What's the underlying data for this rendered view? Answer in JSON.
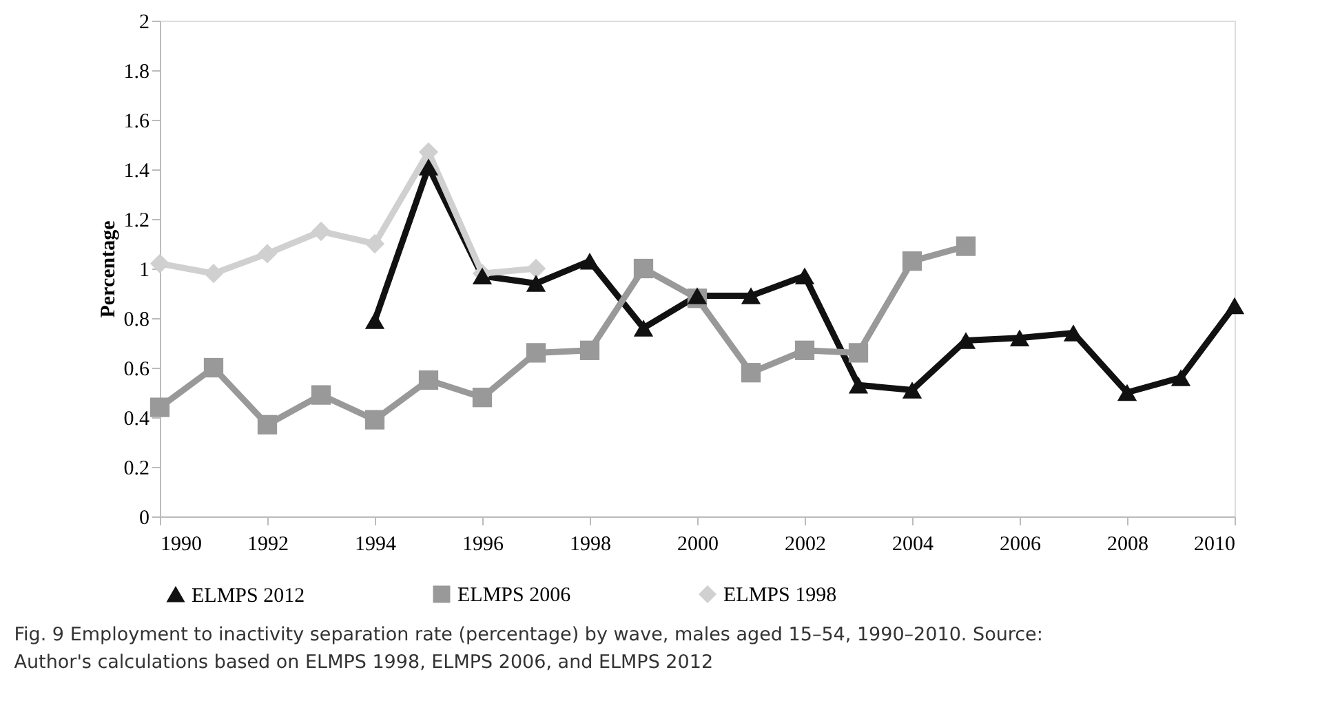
{
  "chart_data": {
    "type": "line",
    "ylabel": "Percentage",
    "xlim": [
      1990,
      2010
    ],
    "xticks": [
      1990,
      1992,
      1994,
      1996,
      1998,
      2000,
      2002,
      2004,
      2006,
      2008,
      2010
    ],
    "ylim": [
      0,
      2
    ],
    "yticks": [
      0,
      0.2,
      0.4,
      0.6,
      0.8,
      1,
      1.2,
      1.4,
      1.6,
      1.8,
      2
    ],
    "grid": false,
    "legend": "bottom",
    "line_style": "solid",
    "series": [
      {
        "name": "ELMPS 2012",
        "color": "#111111",
        "marker": "triangle",
        "x": [
          1994,
          1995,
          1996,
          1997,
          1998,
          1999,
          2000,
          2001,
          2002,
          2003,
          2004,
          2005,
          2006,
          2007,
          2008,
          2009,
          2010
        ],
        "values": [
          0.79,
          1.41,
          0.97,
          0.94,
          1.03,
          0.76,
          0.89,
          0.89,
          0.97,
          0.53,
          0.51,
          0.71,
          0.72,
          0.74,
          0.5,
          0.56,
          0.85
        ]
      },
      {
        "name": "ELMPS 2006",
        "color": "#999999",
        "marker": "square",
        "x": [
          1990,
          1991,
          1992,
          1993,
          1994,
          1995,
          1996,
          1997,
          1998,
          1999,
          2000,
          2001,
          2002,
          2003,
          2004,
          2005
        ],
        "values": [
          0.44,
          0.6,
          0.37,
          0.49,
          0.39,
          0.55,
          0.48,
          0.66,
          0.67,
          1.0,
          0.88,
          0.58,
          0.67,
          0.66,
          1.03,
          1.09
        ]
      },
      {
        "name": "ELMPS 1998",
        "color": "#d0d0d0",
        "marker": "diamond",
        "x": [
          1990,
          1991,
          1992,
          1993,
          1994,
          1995,
          1996,
          1997
        ],
        "values": [
          1.02,
          0.98,
          1.06,
          1.15,
          1.1,
          1.47,
          0.98,
          1.0
        ]
      }
    ],
    "annotations": [
      "Fig. 9 Employment to inactivity separation rate (percentage) by wave, males aged 15–54, 1990–2010. Source: Author's calculations based on ELMPS 1998, ELMPS 2006, and ELMPS 2012"
    ]
  }
}
